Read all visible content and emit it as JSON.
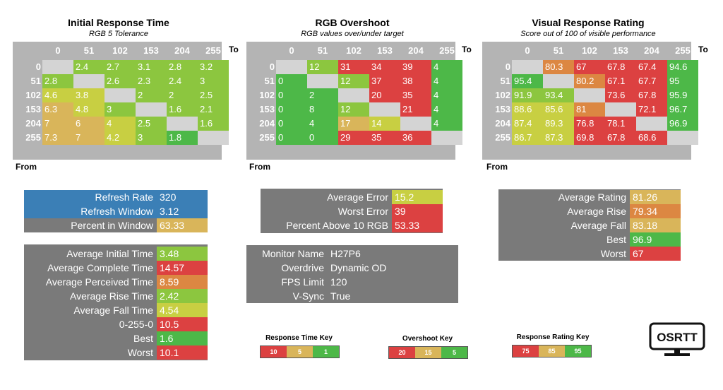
{
  "colors": {
    "green": "#4db848",
    "lgreen": "#8cc63f",
    "yellow": "#c8cf42",
    "gold": "#d9b55a",
    "orange": "#dc8742",
    "red": "#dc4141",
    "gray": "#7a7a7a",
    "blue": "#3b7fb6"
  },
  "chart_data": [
    {
      "type": "heatmap",
      "title": "Initial Response Time",
      "subtitle": "RGB 5 Tolerance",
      "xlabel": "To",
      "ylabel": "From",
      "columns": [
        "0",
        "51",
        "102",
        "153",
        "204",
        "255"
      ],
      "rows": [
        "0",
        "51",
        "102",
        "153",
        "204",
        "255"
      ],
      "values": [
        [
          null,
          "2.4",
          "2.7",
          "3.1",
          "2.8",
          "3.2"
        ],
        [
          "2.8",
          null,
          "2.6",
          "2.3",
          "2.4",
          "3"
        ],
        [
          "4.6",
          "3.8",
          null,
          "2",
          "2",
          "2.5"
        ],
        [
          "6.3",
          "4.8",
          "3",
          null,
          "1.6",
          "2.1"
        ],
        [
          "7",
          "6",
          "4",
          "2.5",
          null,
          "1.6"
        ],
        [
          "7.3",
          "7",
          "4.2",
          "3",
          "1.8",
          null
        ]
      ],
      "colors": [
        [
          null,
          "lgreen",
          "lgreen",
          "lgreen",
          "lgreen",
          "lgreen"
        ],
        [
          "lgreen",
          null,
          "lgreen",
          "lgreen",
          "lgreen",
          "lgreen"
        ],
        [
          "yellow",
          "yellow",
          null,
          "lgreen",
          "lgreen",
          "lgreen"
        ],
        [
          "gold",
          "yellow",
          "lgreen",
          null,
          "lgreen",
          "lgreen"
        ],
        [
          "gold",
          "gold",
          "yellow",
          "lgreen",
          null,
          "lgreen"
        ],
        [
          "gold",
          "gold",
          "yellow",
          "lgreen",
          "green",
          null
        ]
      ]
    },
    {
      "type": "heatmap",
      "title": "RGB Overshoot",
      "subtitle": "RGB values over/under target",
      "xlabel": "To",
      "ylabel": "From",
      "columns": [
        "0",
        "51",
        "102",
        "153",
        "204",
        "255"
      ],
      "rows": [
        "0",
        "51",
        "102",
        "153",
        "204",
        "255"
      ],
      "values": [
        [
          null,
          "12",
          "31",
          "34",
          "39",
          "4"
        ],
        [
          "0",
          null,
          "12",
          "37",
          "38",
          "4"
        ],
        [
          "0",
          "2",
          null,
          "20",
          "35",
          "4"
        ],
        [
          "0",
          "8",
          "12",
          null,
          "21",
          "4"
        ],
        [
          "0",
          "4",
          "17",
          "14",
          null,
          "4"
        ],
        [
          "0",
          "0",
          "29",
          "35",
          "36",
          null
        ]
      ],
      "colors": [
        [
          null,
          "lgreen",
          "red",
          "red",
          "red",
          "green"
        ],
        [
          "green",
          null,
          "lgreen",
          "red",
          "red",
          "green"
        ],
        [
          "green",
          "green",
          null,
          "red",
          "red",
          "green"
        ],
        [
          "green",
          "green",
          "lgreen",
          null,
          "red",
          "green"
        ],
        [
          "green",
          "green",
          "gold",
          "yellow",
          null,
          "green"
        ],
        [
          "green",
          "green",
          "red",
          "red",
          "red",
          null
        ]
      ]
    },
    {
      "type": "heatmap",
      "title": "Visual Response Rating",
      "subtitle": "Score out of 100 of visible performance",
      "xlabel": "To",
      "ylabel": "From",
      "columns": [
        "0",
        "51",
        "102",
        "153",
        "204",
        "255"
      ],
      "rows": [
        "0",
        "51",
        "102",
        "153",
        "204",
        "255"
      ],
      "values": [
        [
          null,
          "80.3",
          "67",
          "67.8",
          "67.4",
          "94.6"
        ],
        [
          "95.4",
          null,
          "80.2",
          "67.1",
          "67.7",
          "95"
        ],
        [
          "91.9",
          "93.4",
          null,
          "73.6",
          "67.8",
          "95.9"
        ],
        [
          "88.6",
          "85.6",
          "81",
          null,
          "72.1",
          "96.7"
        ],
        [
          "87.4",
          "89.3",
          "76.8",
          "78.1",
          null,
          "96.9"
        ],
        [
          "86.7",
          "87.3",
          "69.8",
          "67.8",
          "68.6",
          null
        ]
      ],
      "colors": [
        [
          null,
          "orange",
          "red",
          "red",
          "red",
          "green"
        ],
        [
          "green",
          null,
          "orange",
          "red",
          "red",
          "green"
        ],
        [
          "lgreen",
          "lgreen",
          null,
          "red",
          "red",
          "green"
        ],
        [
          "yellow",
          "yellow",
          "orange",
          null,
          "red",
          "green"
        ],
        [
          "yellow",
          "yellow",
          "red",
          "red",
          null,
          "green"
        ],
        [
          "yellow",
          "yellow",
          "red",
          "red",
          "red",
          null
        ]
      ]
    }
  ],
  "left_panel": {
    "refresh": [
      {
        "label": "Refresh Rate",
        "value": "320",
        "labelColor": "blue",
        "color": "blue"
      },
      {
        "label": "Refresh Window",
        "value": "3.12",
        "labelColor": "blue",
        "color": "blue"
      },
      {
        "label": "Percent in Window",
        "value": "63.33",
        "labelColor": "gray",
        "color": "gold"
      }
    ],
    "times": [
      {
        "label": "Average Initial Time",
        "value": "3.48",
        "color": "lgreen"
      },
      {
        "label": "Average Complete Time",
        "value": "14.57",
        "color": "red"
      },
      {
        "label": "Average Perceived Time",
        "value": "8.59",
        "color": "orange"
      },
      {
        "label": "Average Rise Time",
        "value": "2.42",
        "color": "lgreen"
      },
      {
        "label": "Average Fall Time",
        "value": "4.54",
        "color": "yellow"
      },
      {
        "label": "0-255-0",
        "value": "10.5",
        "color": "red"
      },
      {
        "label": "Best",
        "value": "1.6",
        "color": "green"
      },
      {
        "label": "Worst",
        "value": "10.1",
        "color": "red"
      }
    ]
  },
  "mid_panel": {
    "errors": [
      {
        "label": "Average Error",
        "value": "15.2",
        "color": "yellow"
      },
      {
        "label": "Worst Error",
        "value": "39",
        "color": "red"
      },
      {
        "label": "Percent Above 10 RGB",
        "value": "53.33",
        "color": "red"
      }
    ],
    "info": [
      {
        "label": "Monitor Name",
        "value": "H27P6"
      },
      {
        "label": "Overdrive",
        "value": "Dynamic OD"
      },
      {
        "label": "FPS Limit",
        "value": "120"
      },
      {
        "label": "V-Sync",
        "value": "True"
      }
    ]
  },
  "right_panel": {
    "ratings": [
      {
        "label": "Average Rating",
        "value": "81.26",
        "color": "gold"
      },
      {
        "label": "Average Rise",
        "value": "79.34",
        "color": "orange"
      },
      {
        "label": "Average Fall",
        "value": "83.18",
        "color": "gold"
      },
      {
        "label": "Best",
        "value": "96.9",
        "color": "green"
      },
      {
        "label": "Worst",
        "value": "67",
        "color": "red"
      }
    ]
  },
  "keys": [
    {
      "title": "Response Time Key",
      "items": [
        {
          "label": "10",
          "color": "red"
        },
        {
          "label": "5",
          "color": "gold"
        },
        {
          "label": "1",
          "color": "green"
        }
      ]
    },
    {
      "title": "Overshoot Key",
      "items": [
        {
          "label": "20",
          "color": "red"
        },
        {
          "label": "15",
          "color": "gold"
        },
        {
          "label": "5",
          "color": "green"
        }
      ]
    },
    {
      "title": "Response Rating Key",
      "items": [
        {
          "label": "75",
          "color": "red"
        },
        {
          "label": "85",
          "color": "gold"
        },
        {
          "label": "95",
          "color": "green"
        }
      ]
    }
  ],
  "logo": {
    "text": "OSRTT"
  }
}
